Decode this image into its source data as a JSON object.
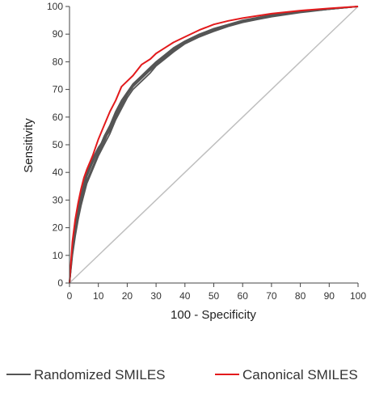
{
  "chart_data": {
    "type": "line",
    "title": "",
    "xlabel": "100 - Specificity",
    "ylabel": "Sensitivity",
    "xlim": [
      0,
      100
    ],
    "ylim": [
      0,
      100
    ],
    "x_ticks": [
      "0",
      "10",
      "20",
      "30",
      "40",
      "50",
      "60",
      "70",
      "80",
      "90",
      "100"
    ],
    "y_ticks": [
      "0",
      "10",
      "20",
      "30",
      "40",
      "50",
      "60",
      "70",
      "80",
      "90",
      "100"
    ],
    "grid": false,
    "legend_placement": "bottom",
    "colors": {
      "randomized": "#555555",
      "canonical": "#e31a1c",
      "diagonal": "#bfbfbf",
      "axis": "#444444"
    },
    "legend": [
      {
        "label": "Randomized SMILES",
        "color": "#555555"
      },
      {
        "label": "Canonical SMILES",
        "color": "#e31a1c"
      }
    ],
    "series": [
      {
        "name": "Randomized SMILES",
        "x": [
          0,
          1,
          2,
          3,
          4,
          5,
          6,
          8,
          10,
          12,
          14,
          16,
          18,
          20,
          22,
          25,
          28,
          30,
          33,
          36,
          40,
          45,
          50,
          55,
          60,
          65,
          70,
          80,
          90,
          100
        ],
        "y": [
          0,
          11,
          18,
          24,
          29,
          33,
          37,
          42,
          47,
          51,
          56,
          61,
          65,
          68,
          71,
          74,
          77,
          79,
          82,
          84,
          87,
          89.5,
          91.5,
          93,
          94.5,
          95.5,
          96.5,
          98,
          99,
          100
        ]
      },
      {
        "name": "Randomized SMILES",
        "x": [
          0,
          1,
          2,
          3,
          4,
          5,
          6,
          8,
          10,
          12,
          14,
          16,
          18,
          20,
          22,
          25,
          28,
          30,
          33,
          36,
          40,
          45,
          50,
          55,
          60,
          65,
          70,
          80,
          90,
          100
        ],
        "y": [
          0,
          12,
          20,
          26,
          31,
          35,
          39,
          44,
          48,
          53,
          57,
          62,
          66,
          69,
          72,
          75,
          78,
          80,
          82.5,
          85,
          87.5,
          90,
          92,
          93.5,
          95,
          96,
          97,
          98.2,
          99.2,
          100
        ]
      },
      {
        "name": "Randomized SMILES",
        "x": [
          0,
          1,
          2,
          3,
          4,
          5,
          6,
          8,
          10,
          12,
          14,
          16,
          18,
          20,
          22,
          25,
          28,
          30,
          33,
          36,
          40,
          45,
          50,
          55,
          60,
          65,
          70,
          80,
          90,
          100
        ],
        "y": [
          0,
          10,
          17,
          23,
          28,
          32,
          36,
          41,
          46,
          50,
          54,
          59,
          63,
          67,
          70,
          73,
          76,
          78.5,
          81,
          83.5,
          86.5,
          89,
          91,
          92.8,
          94.2,
          95.3,
          96.3,
          97.8,
          99,
          100
        ]
      },
      {
        "name": "Randomized SMILES",
        "x": [
          0,
          1,
          2,
          3,
          4,
          5,
          6,
          8,
          10,
          12,
          14,
          16,
          18,
          20,
          22,
          25,
          28,
          30,
          33,
          36,
          40,
          45,
          50,
          55,
          60,
          65,
          70,
          80,
          90,
          100
        ],
        "y": [
          0,
          13,
          21,
          27,
          32,
          36,
          40,
          45,
          49,
          52,
          55,
          60,
          64,
          68,
          71,
          74.5,
          77.5,
          79.5,
          82,
          84.5,
          87,
          89.8,
          91.8,
          93.3,
          94.8,
          95.8,
          96.8,
          98.1,
          99.1,
          100
        ]
      },
      {
        "name": "Randomized SMILES",
        "x": [
          0,
          1,
          2,
          3,
          4,
          5,
          6,
          8,
          10,
          12,
          14,
          16,
          18,
          20,
          22,
          25,
          28,
          30,
          33,
          36,
          40,
          45,
          50,
          55,
          60,
          65,
          70,
          80,
          90,
          100
        ],
        "y": [
          0,
          11.5,
          19,
          25,
          30,
          34.5,
          38.5,
          43.5,
          48,
          52,
          56,
          61,
          65,
          68.5,
          71.5,
          74.5,
          77,
          79,
          81.5,
          84,
          86.8,
          89.3,
          91.3,
          92.9,
          94.4,
          95.4,
          96.5,
          98,
          99,
          100
        ]
      },
      {
        "name": "Canonical SMILES",
        "x": [
          0,
          1,
          2,
          3,
          4,
          5,
          6,
          8,
          10,
          12,
          14,
          16,
          18,
          20,
          22,
          25,
          28,
          30,
          33,
          36,
          40,
          45,
          50,
          55,
          60,
          65,
          70,
          80,
          90,
          100
        ],
        "y": [
          0,
          15,
          23,
          29,
          34,
          38,
          41,
          46,
          52,
          57,
          62,
          66,
          71,
          73,
          75,
          79,
          81,
          83,
          85,
          87,
          89,
          91.5,
          93.5,
          94.8,
          95.8,
          96.6,
          97.4,
          98.5,
          99.3,
          100
        ]
      }
    ]
  }
}
